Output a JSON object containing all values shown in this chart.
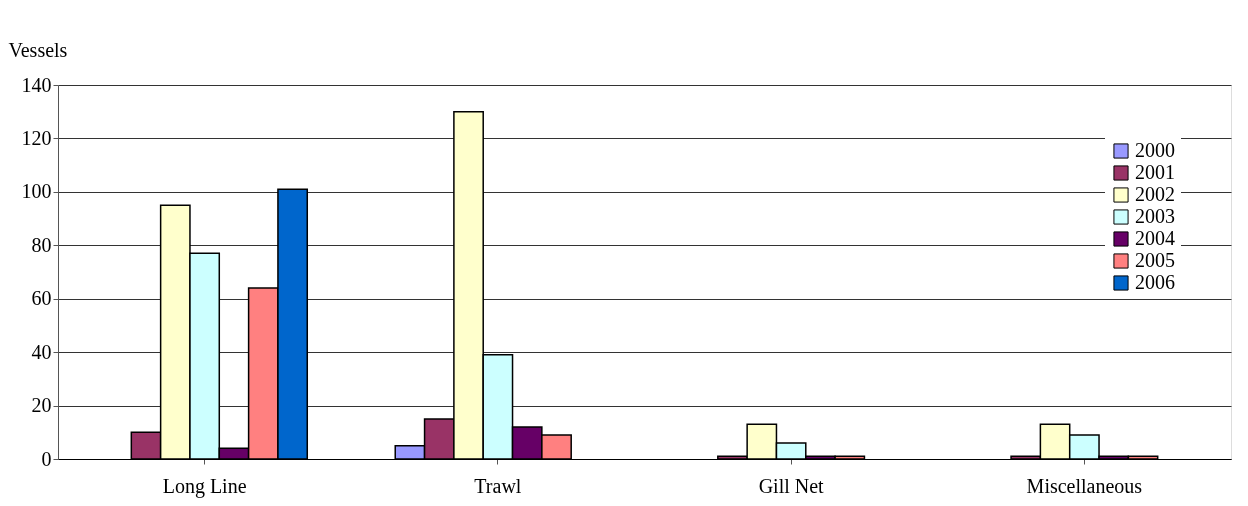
{
  "chart_data": {
    "type": "bar",
    "ylabel": "Vessels",
    "categories": [
      "Long Line",
      "Trawl",
      "Gill Net",
      "Miscellaneous"
    ],
    "series": [
      {
        "name": "2000",
        "color": "#9999ff",
        "values": [
          null,
          5,
          null,
          null
        ]
      },
      {
        "name": "2001",
        "color": "#993366",
        "values": [
          10,
          15,
          1,
          1
        ]
      },
      {
        "name": "2002",
        "color": "#ffffcc",
        "values": [
          95,
          130,
          13,
          13
        ]
      },
      {
        "name": "2003",
        "color": "#ccffff",
        "values": [
          77,
          39,
          6,
          9
        ]
      },
      {
        "name": "2004",
        "color": "#660066",
        "values": [
          4,
          12,
          1,
          1
        ]
      },
      {
        "name": "2005",
        "color": "#ff8080",
        "values": [
          64,
          9,
          1,
          1
        ]
      },
      {
        "name": "2006",
        "color": "#0066cc",
        "values": [
          101,
          null,
          null,
          null
        ]
      }
    ],
    "ylim": [
      0,
      140
    ],
    "yticks": [
      0,
      20,
      40,
      60,
      80,
      100,
      120,
      140
    ],
    "grid": "y",
    "legend": "top right"
  }
}
